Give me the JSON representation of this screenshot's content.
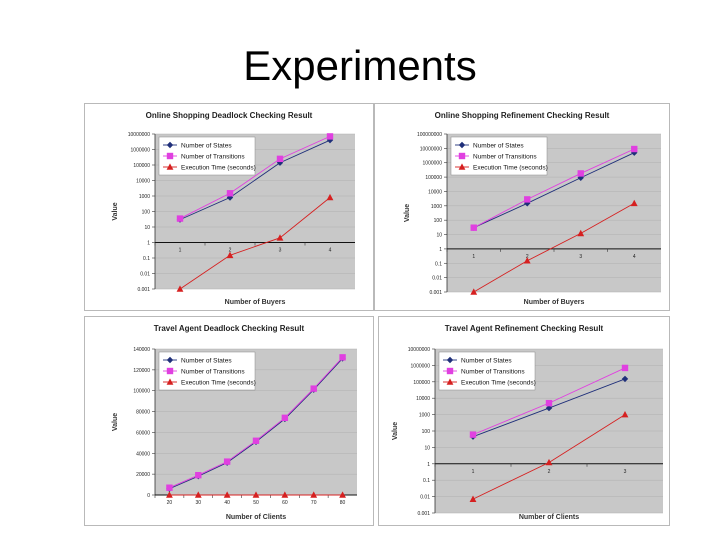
{
  "slide": {
    "title": "Experiments"
  },
  "legend_colors": {
    "Number of States": "#1f2f7a",
    "Number of Transitions": "#e040e0",
    "Execution Time (seconds)": "#d62020"
  },
  "chart_data": [
    {
      "type": "line",
      "title": "Online Shopping Deadlock Checking Result",
      "xlabel": "Number of Buyers",
      "ylabel": "Value",
      "yscale": "log",
      "ylim": [
        0.001,
        10000000
      ],
      "y_ticks": [
        "10000000",
        "1000000",
        "100000",
        "10000",
        "1000",
        "100",
        "10",
        "1",
        "0.1",
        "0.01",
        "0.001"
      ],
      "x_ticks": [
        "1",
        "2",
        "3",
        "4"
      ],
      "x": [
        1,
        2,
        3,
        4
      ],
      "legend_position": "top-left",
      "series": [
        {
          "name": "Number of States",
          "values": [
            30,
            800,
            140000,
            4000000
          ]
        },
        {
          "name": "Number of Transitions",
          "values": [
            35,
            1500,
            250000,
            7000000
          ]
        },
        {
          "name": "Execution Time (seconds)",
          "values": [
            0.001,
            0.15,
            2,
            800
          ]
        }
      ]
    },
    {
      "type": "line",
      "title": "Online Shopping Refinement Checking Result",
      "xlabel": "Number of Buyers",
      "ylabel": "Value",
      "yscale": "log",
      "ylim": [
        0.001,
        100000000
      ],
      "y_ticks": [
        "100000000",
        "10000000",
        "1000000",
        "100000",
        "10000",
        "1000",
        "100",
        "10",
        "1",
        "0.1",
        "0.01",
        "0.001"
      ],
      "x_ticks": [
        "1",
        "2",
        "3",
        "4"
      ],
      "x": [
        1,
        2,
        3,
        4
      ],
      "legend_position": "top-left",
      "series": [
        {
          "name": "Number of States",
          "values": [
            30,
            1500,
            90000,
            5000000
          ]
        },
        {
          "name": "Number of Transitions",
          "values": [
            30,
            2800,
            180000,
            9000000
          ]
        },
        {
          "name": "Execution Time (seconds)",
          "values": [
            0.001,
            0.15,
            12,
            1500
          ]
        }
      ]
    },
    {
      "type": "line",
      "title": "Travel Agent Deadlock Checking Result",
      "xlabel": "Number of Clients",
      "ylabel": "Value",
      "yscale": "linear",
      "ylim": [
        0,
        140000
      ],
      "y_ticks": [
        "140000",
        "120000",
        "100000",
        "80000",
        "60000",
        "40000",
        "20000",
        "0"
      ],
      "x_ticks": [
        "20",
        "30",
        "40",
        "50",
        "60",
        "70",
        "80"
      ],
      "x": [
        20,
        30,
        40,
        50,
        60,
        70,
        80
      ],
      "legend_position": "top-left",
      "series": [
        {
          "name": "Number of States",
          "values": [
            6000,
            18000,
            31000,
            51000,
            73000,
            101000,
            131000
          ]
        },
        {
          "name": "Number of Transitions",
          "values": [
            7000,
            19000,
            32000,
            52000,
            74000,
            102000,
            132000
          ]
        },
        {
          "name": "Execution Time (seconds)",
          "values": [
            0,
            0,
            0,
            0,
            0,
            0,
            0
          ]
        }
      ]
    },
    {
      "type": "line",
      "title": "Travel Agent Refinement Checking Result",
      "xlabel": "Number of Clients",
      "ylabel": "Value",
      "yscale": "log",
      "ylim": [
        0.001,
        10000000
      ],
      "y_ticks": [
        "10000000",
        "1000000",
        "100000",
        "10000",
        "1000",
        "100",
        "10",
        "1",
        "0.1",
        "0.01",
        "0.001"
      ],
      "x_ticks": [
        "1",
        "2",
        "3"
      ],
      "x": [
        1,
        2,
        3
      ],
      "legend_position": "top-left",
      "series": [
        {
          "name": "Number of States",
          "values": [
            45,
            2500,
            150000
          ]
        },
        {
          "name": "Number of Transitions",
          "values": [
            60,
            5000,
            700000
          ]
        },
        {
          "name": "Execution Time (seconds)",
          "values": [
            0.007,
            1.2,
            1000
          ]
        }
      ]
    }
  ]
}
